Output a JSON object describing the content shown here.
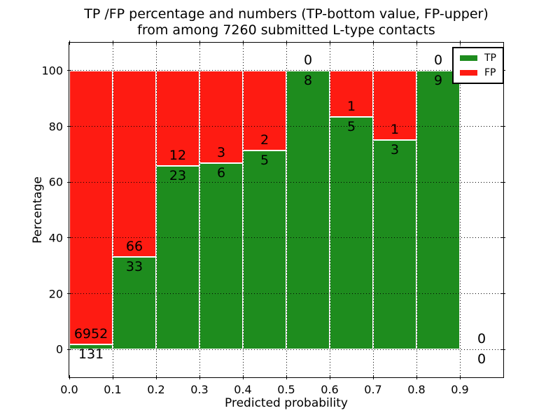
{
  "figure": {
    "title_line1": "TP /FP percentage and numbers (TP-bottom value, FP-upper)",
    "title_line2": "from among 7260 submitted L-type contacts"
  },
  "chart_data": {
    "type": "bar",
    "stacked": true,
    "title": "TP /FP percentage and numbers (TP-bottom value, FP-upper) from among 7260 submitted L-type contacts",
    "xlabel": "Predicted probability",
    "ylabel": "Percentage",
    "xlim": [
      0.0,
      1.0
    ],
    "ylim": [
      -10,
      110
    ],
    "yticks": [
      0,
      20,
      40,
      60,
      80,
      100
    ],
    "xticks": [
      {
        "v": 0.0,
        "label": "0.0"
      },
      {
        "v": 0.1,
        "label": "0.1"
      },
      {
        "v": 0.2,
        "label": "0.2"
      },
      {
        "v": 0.3,
        "label": "0.3"
      },
      {
        "v": 0.4,
        "label": "0.4"
      },
      {
        "v": 0.5,
        "label": "0.5"
      },
      {
        "v": 0.6,
        "label": "0.6"
      },
      {
        "v": 0.7,
        "label": "0.7"
      },
      {
        "v": 0.8,
        "label": "0.8"
      },
      {
        "v": 0.9,
        "label": "0.9"
      }
    ],
    "grid": "dotted",
    "bin_edges": [
      0.0,
      0.1,
      0.2,
      0.3,
      0.4,
      0.5,
      0.6,
      0.7,
      0.8,
      0.9,
      1.0
    ],
    "categories": [
      "0.0-0.1",
      "0.1-0.2",
      "0.2-0.3",
      "0.3-0.4",
      "0.4-0.5",
      "0.5-0.6",
      "0.6-0.7",
      "0.7-0.8",
      "0.8-0.9",
      "0.9-1.0"
    ],
    "series": [
      {
        "name": "TP",
        "color": "#1e8c1e",
        "counts": [
          131,
          33,
          23,
          6,
          5,
          8,
          5,
          3,
          9,
          0
        ]
      },
      {
        "name": "FP",
        "color": "#fe1b12",
        "counts": [
          6952,
          66,
          12,
          3,
          2,
          0,
          1,
          1,
          0,
          0
        ]
      }
    ],
    "tp_percent": [
      1.8,
      33.3,
      65.7,
      66.7,
      71.4,
      100.0,
      83.3,
      75.0,
      100.0,
      null
    ],
    "total_contacts": 7260,
    "legend": {
      "position": "upper right",
      "entries": [
        {
          "label": "TP",
          "color": "#1e8c1e"
        },
        {
          "label": "FP",
          "color": "#fe1b12"
        }
      ]
    }
  }
}
